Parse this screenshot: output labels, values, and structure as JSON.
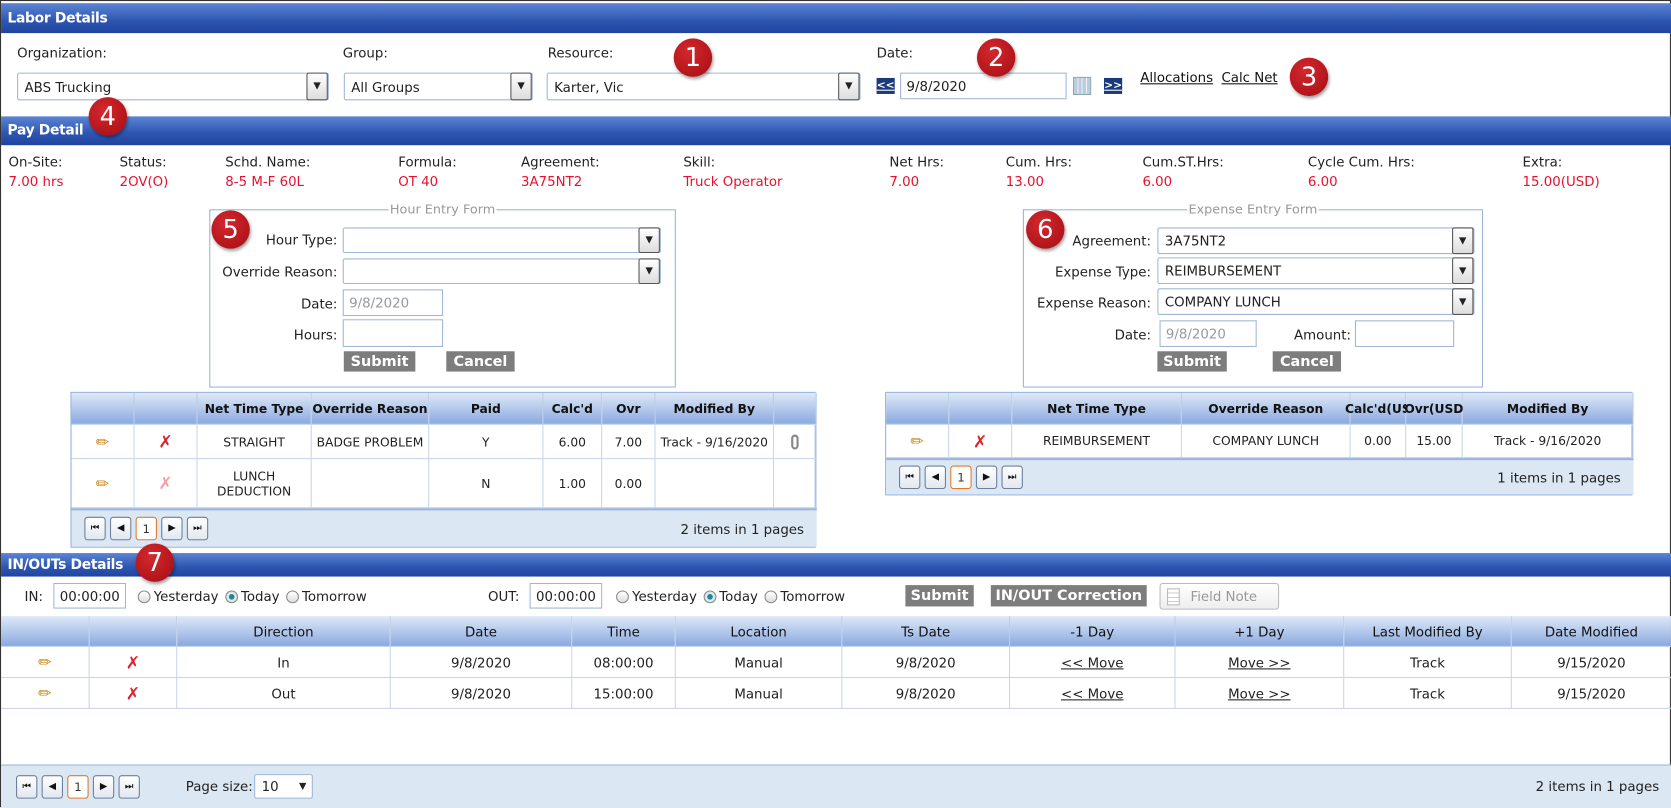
{
  "labor_details": {
    "title": "Labor Details",
    "organization": {
      "label": "Organization:",
      "value": "ABS Trucking"
    },
    "group": {
      "label": "Group:",
      "value": "All Groups"
    },
    "resource": {
      "label": "Resource:",
      "value": "Karter, Vic"
    },
    "date": {
      "label": "Date:",
      "value": "9/8/2020",
      "prev": "<<",
      "next": ">>"
    },
    "links": {
      "allocations": "Allocations",
      "calc_net": "Calc Net"
    }
  },
  "pay_detail": {
    "title": "Pay Detail",
    "fields": [
      {
        "label": "On-Site:",
        "value": "7.00 hrs"
      },
      {
        "label": "Status:",
        "value": "2OV(O)"
      },
      {
        "label": "Schd. Name:",
        "value": "8-5 M-F 60L"
      },
      {
        "label": "Formula:",
        "value": "OT 40"
      },
      {
        "label": "Agreement:",
        "value": "3A75NT2"
      },
      {
        "label": "Skill:",
        "value": "Truck Operator"
      },
      {
        "label": "Net Hrs:",
        "value": "7.00"
      },
      {
        "label": "Cum. Hrs:",
        "value": "13.00"
      },
      {
        "label": "Cum.ST.Hrs:",
        "value": "6.00"
      },
      {
        "label": "Cycle Cum. Hrs:",
        "value": "6.00"
      },
      {
        "label": "Extra:",
        "value": "15.00(USD)"
      }
    ],
    "value_color": "#e8112d"
  },
  "hour_form": {
    "legend": "Hour Entry Form",
    "hour_type_label": "Hour Type:",
    "hour_type": "",
    "override_label": "Override Reason:",
    "override": "",
    "date_label": "Date:",
    "date": "9/8/2020",
    "hours_label": "Hours:",
    "hours": "",
    "submit": "Submit",
    "cancel": "Cancel"
  },
  "expense_form": {
    "legend": "Expense Entry Form",
    "agreement_label": "Agreement:",
    "agreement": "3A75NT2",
    "type_label": "Expense Type:",
    "type": "REIMBURSEMENT",
    "reason_label": "Expense Reason:",
    "reason": "COMPANY LUNCH",
    "date_label": "Date:",
    "date": "9/8/2020",
    "amount_label": "Amount:",
    "amount": "",
    "submit": "Submit",
    "cancel": "Cancel"
  },
  "hour_grid": {
    "columns": [
      "",
      "",
      "Net Time Type",
      "Override Reason",
      "Paid",
      "Calc'd",
      "Ovr",
      "Modified By",
      ""
    ],
    "rows": [
      [
        "STRAIGHT",
        "BADGE PROBLEM",
        "Y",
        "6.00",
        "7.00",
        "Track - 9/16/2020"
      ],
      [
        "LUNCH DEDUCTION",
        "",
        "N",
        "1.00",
        "0.00",
        ""
      ]
    ],
    "page": "1",
    "summary": "2 items in 1 pages"
  },
  "expense_grid": {
    "columns": [
      "",
      "",
      "Net Time Type",
      "Override Reason",
      "Calc'd(US",
      "Ovr(USD",
      "Modified By"
    ],
    "rows": [
      [
        "REIMBURSEMENT",
        "COMPANY LUNCH",
        "0.00",
        "15.00",
        "Track - 9/16/2020"
      ]
    ],
    "page": "1",
    "summary": "1 items in 1 pages"
  },
  "inouts": {
    "title": "IN/OUTs Details",
    "in_label": "IN:",
    "in_value": "00:00:00",
    "out_label": "OUT:",
    "out_value": "00:00:00",
    "options": [
      "Yesterday",
      "Today",
      "Tomorrow"
    ],
    "selected": "Today",
    "submit": "Submit",
    "correction": "IN/OUT Correction",
    "field_note": "Field Note",
    "columns": [
      "",
      "",
      "Direction",
      "Date",
      "Time",
      "Location",
      "Ts Date",
      "-1 Day",
      "+1 Day",
      "Last Modified By",
      "Date Modified"
    ],
    "rows": [
      [
        "In",
        "9/8/2020",
        "08:00:00",
        "Manual",
        "9/8/2020",
        "<< Move",
        "Move >>",
        "Track",
        "9/15/2020"
      ],
      [
        "Out",
        "9/8/2020",
        "15:00:00",
        "Manual",
        "9/8/2020",
        "<< Move",
        "Move >>",
        "Track",
        "9/15/2020"
      ]
    ],
    "page": "1",
    "page_size_label": "Page size:",
    "page_size": "10",
    "summary": "2 items in 1 pages"
  },
  "badges": [
    "1",
    "2",
    "3",
    "4",
    "5",
    "6",
    "7"
  ]
}
